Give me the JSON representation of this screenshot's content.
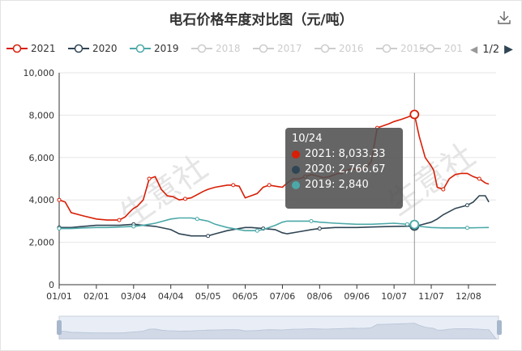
{
  "title": "电石价格年度对比图（元/吨）",
  "watermark": "生意社",
  "legend": {
    "items": [
      {
        "label": "2021",
        "color": "#d81e06",
        "active": true
      },
      {
        "label": "2020",
        "color": "#2f4554",
        "active": true
      },
      {
        "label": "2019",
        "color": "#4ca8a8",
        "active": true
      },
      {
        "label": "2018",
        "color": "#cccccc",
        "active": false
      },
      {
        "label": "2017",
        "color": "#cccccc",
        "active": false
      },
      {
        "label": "2016",
        "color": "#cccccc",
        "active": false
      },
      {
        "label": "2015",
        "color": "#cccccc",
        "active": false
      },
      {
        "label": "201",
        "color": "#cccccc",
        "active": false
      }
    ],
    "page": "1/2"
  },
  "tooltip": {
    "date": "10/24",
    "rows": [
      {
        "text": "2021: 8,033.33",
        "color": "#d81e06"
      },
      {
        "text": "2020: 2,766.67",
        "color": "#2f4554"
      },
      {
        "text": "2019: 2,840",
        "color": "#4ca8a8"
      }
    ]
  },
  "chart_data": {
    "type": "line",
    "title": "电石价格年度对比图（元/吨）",
    "ylim": [
      0,
      10000
    ],
    "yticks": [
      "0",
      "2,000",
      "4,000",
      "6,000",
      "8,000",
      "10,000"
    ],
    "yvalues": [
      0,
      2000,
      4000,
      6000,
      8000,
      10000
    ],
    "xticks": [
      "01/01",
      "02/01",
      "03/04",
      "04/04",
      "05/05",
      "06/05",
      "07/06",
      "08/06",
      "09/06",
      "10/07",
      "11/07",
      "12/08"
    ],
    "xlim": [
      0,
      364
    ],
    "xtick_days": [
      0,
      31,
      62,
      93,
      124,
      155,
      186,
      217,
      248,
      279,
      310,
      341
    ],
    "cursor_day": 296,
    "grid": true,
    "series": [
      {
        "name": "2021",
        "color": "#d81e06",
        "x": [
          0,
          5,
          10,
          20,
          31,
          40,
          50,
          55,
          60,
          62,
          65,
          70,
          75,
          80,
          85,
          90,
          95,
          100,
          105,
          110,
          120,
          124,
          130,
          140,
          145,
          150,
          155,
          160,
          165,
          170,
          175,
          180,
          186,
          190,
          195,
          200,
          205,
          210,
          217,
          220,
          225,
          230,
          235,
          240,
          245,
          248,
          255,
          260,
          265,
          270,
          275,
          279,
          285,
          290,
          296,
          300,
          305,
          310,
          312,
          315,
          320,
          325,
          330,
          335,
          340,
          345,
          350,
          355,
          358
        ],
        "y": [
          4000,
          3900,
          3400,
          3250,
          3100,
          3050,
          3050,
          3200,
          3500,
          3600,
          3700,
          4000,
          5000,
          5100,
          4500,
          4200,
          4150,
          4000,
          4050,
          4100,
          4400,
          4500,
          4600,
          4700,
          4700,
          4650,
          4100,
          4200,
          4300,
          4600,
          4700,
          4650,
          4600,
          4800,
          5000,
          5000,
          5100,
          5200,
          5100,
          5050,
          5100,
          5200,
          5300,
          5400,
          5500,
          5400,
          5500,
          5800,
          7400,
          7500,
          7600,
          7700,
          7800,
          7900,
          8033,
          7000,
          6000,
          5600,
          5400,
          4600,
          4500,
          5000,
          5200,
          5250,
          5250,
          5100,
          5000,
          4800,
          4750
        ]
      },
      {
        "name": "2020",
        "color": "#2f4554",
        "x": [
          0,
          10,
          20,
          31,
          40,
          50,
          62,
          70,
          80,
          93,
          100,
          110,
          124,
          130,
          140,
          150,
          155,
          160,
          170,
          180,
          186,
          190,
          200,
          210,
          217,
          230,
          248,
          260,
          279,
          290,
          296,
          300,
          310,
          315,
          320,
          330,
          340,
          345,
          350,
          355,
          358
        ],
        "y": [
          2700,
          2700,
          2750,
          2800,
          2800,
          2800,
          2850,
          2800,
          2750,
          2600,
          2400,
          2300,
          2300,
          2400,
          2550,
          2650,
          2700,
          2700,
          2650,
          2600,
          2450,
          2400,
          2500,
          2600,
          2650,
          2700,
          2700,
          2720,
          2750,
          2760,
          2767,
          2800,
          2950,
          3100,
          3300,
          3600,
          3750,
          3900,
          4200,
          4200,
          3900
        ]
      },
      {
        "name": "2019",
        "color": "#4ca8a8",
        "x": [
          0,
          10,
          20,
          31,
          40,
          50,
          62,
          70,
          80,
          93,
          100,
          110,
          115,
          124,
          130,
          140,
          150,
          155,
          165,
          170,
          180,
          186,
          190,
          200,
          210,
          217,
          230,
          248,
          260,
          279,
          290,
          296,
          300,
          310,
          320,
          330,
          340,
          350,
          358
        ],
        "y": [
          2650,
          2650,
          2680,
          2700,
          2700,
          2720,
          2750,
          2800,
          2900,
          3100,
          3150,
          3150,
          3100,
          3000,
          2850,
          2700,
          2600,
          2550,
          2550,
          2600,
          2800,
          2950,
          3000,
          3000,
          3000,
          2950,
          2900,
          2850,
          2850,
          2900,
          2850,
          2840,
          2750,
          2700,
          2680,
          2680,
          2680,
          2690,
          2700
        ]
      }
    ]
  }
}
